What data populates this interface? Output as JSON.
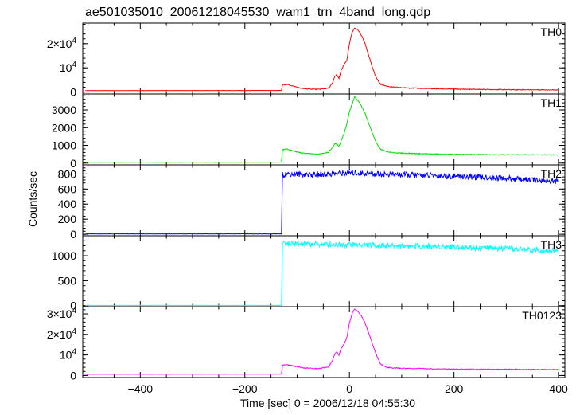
{
  "figure": {
    "title": "ae501035010_20061218045530_wam1_trn_4band_long.qdp",
    "xlabel": "Time [sec] 0 = 2006/12/18 04:55:30",
    "ylabel": "Counts/sec",
    "x_ticks": [
      "−400",
      "−200",
      "0",
      "200",
      "400"
    ]
  },
  "chart_data": [
    {
      "type": "line",
      "name": "TH0",
      "color": "#ff0000",
      "xlim": [
        -510,
        412
      ],
      "ylim": [
        -800,
        28500
      ],
      "y_ticks": [
        {
          "value": 0,
          "label": "0"
        },
        {
          "value": 10000,
          "label": "10^4"
        },
        {
          "value": 20000,
          "label": "2×10^4"
        }
      ],
      "x": [
        -505,
        -130,
        -128,
        -120,
        -110,
        -90,
        -60,
        -40,
        -32,
        -28,
        -24,
        -20,
        -16,
        -10,
        -5,
        0,
        5,
        10,
        15,
        20,
        25,
        30,
        35,
        40,
        45,
        50,
        55,
        60,
        70,
        80,
        100,
        150,
        200,
        300,
        400
      ],
      "y": [
        600,
        650,
        3000,
        3200,
        2600,
        1400,
        1100,
        1600,
        3800,
        6500,
        7200,
        5500,
        8800,
        11500,
        13000,
        20000,
        24500,
        26500,
        26000,
        24500,
        22500,
        20000,
        16500,
        13000,
        9500,
        6500,
        4500,
        3200,
        2500,
        2100,
        1800,
        1400,
        1200,
        1000,
        900
      ]
    },
    {
      "type": "line",
      "name": "TH1",
      "color": "#00dd00",
      "xlim": [
        -510,
        412
      ],
      "ylim": [
        -100,
        3900
      ],
      "y_ticks": [
        {
          "value": 0,
          "label": "0"
        },
        {
          "value": 1000,
          "label": "1000"
        },
        {
          "value": 2000,
          "label": "2000"
        },
        {
          "value": 3000,
          "label": "3000"
        }
      ],
      "x": [
        -505,
        -130,
        -128,
        -120,
        -110,
        -90,
        -60,
        -40,
        -32,
        -28,
        -24,
        -20,
        -16,
        -10,
        -5,
        0,
        5,
        10,
        15,
        20,
        25,
        30,
        35,
        40,
        45,
        50,
        55,
        60,
        70,
        80,
        100,
        150,
        200,
        300,
        400
      ],
      "y": [
        50,
        50,
        750,
        800,
        700,
        560,
        500,
        620,
        900,
        1100,
        1050,
        950,
        1250,
        1700,
        2200,
        2900,
        3300,
        3750,
        3550,
        3400,
        3100,
        2800,
        2400,
        2000,
        1600,
        1250,
        950,
        780,
        650,
        600,
        560,
        520,
        490,
        470,
        460
      ]
    },
    {
      "type": "line",
      "name": "TH2",
      "color": "#0000ff",
      "xlim": [
        -510,
        412
      ],
      "ylim": [
        -20,
        920
      ],
      "y_ticks": [
        {
          "value": 0,
          "label": "0"
        },
        {
          "value": 200,
          "label": "200"
        },
        {
          "value": 400,
          "label": "400"
        },
        {
          "value": 600,
          "label": "600"
        },
        {
          "value": 800,
          "label": "800"
        }
      ],
      "x": [
        -505,
        -130,
        -128,
        -120,
        -60,
        0,
        50,
        100,
        200,
        300,
        400
      ],
      "y": [
        5,
        5,
        790,
        800,
        790,
        815,
        800,
        790,
        770,
        740,
        700
      ]
    },
    {
      "type": "line",
      "name": "TH3",
      "color": "#00ffff",
      "xlim": [
        -510,
        412
      ],
      "ylim": [
        -20,
        1400
      ],
      "y_ticks": [
        {
          "value": 0,
          "label": "0"
        },
        {
          "value": 500,
          "label": "500"
        },
        {
          "value": 1000,
          "label": "1000"
        }
      ],
      "x": [
        -505,
        -130,
        -128,
        -120,
        -60,
        0,
        50,
        100,
        200,
        300,
        400
      ],
      "y": [
        5,
        5,
        1230,
        1240,
        1230,
        1225,
        1210,
        1200,
        1180,
        1140,
        1100
      ]
    },
    {
      "type": "line",
      "name": "TH0123",
      "color": "#ff00ff",
      "xlim": [
        -510,
        412
      ],
      "ylim": [
        -1000,
        33500
      ],
      "y_ticks": [
        {
          "value": 0,
          "label": "0"
        },
        {
          "value": 10000,
          "label": "10^4"
        },
        {
          "value": 20000,
          "label": "2×10^4"
        },
        {
          "value": 30000,
          "label": "3×10^4"
        }
      ],
      "x": [
        -505,
        -130,
        -128,
        -120,
        -110,
        -90,
        -60,
        -40,
        -32,
        -28,
        -24,
        -20,
        -16,
        -10,
        -5,
        0,
        5,
        10,
        15,
        20,
        25,
        30,
        35,
        40,
        45,
        50,
        55,
        60,
        70,
        80,
        100,
        150,
        200,
        300,
        400
      ],
      "y": [
        600,
        650,
        5000,
        5300,
        4800,
        3700,
        3300,
        4200,
        7500,
        10500,
        11500,
        10000,
        13000,
        15500,
        18500,
        25500,
        30000,
        32500,
        31500,
        30000,
        28000,
        25500,
        22000,
        18500,
        14500,
        11000,
        8000,
        5500,
        4100,
        3700,
        3500,
        3300,
        3100,
        3000,
        2900
      ]
    }
  ]
}
